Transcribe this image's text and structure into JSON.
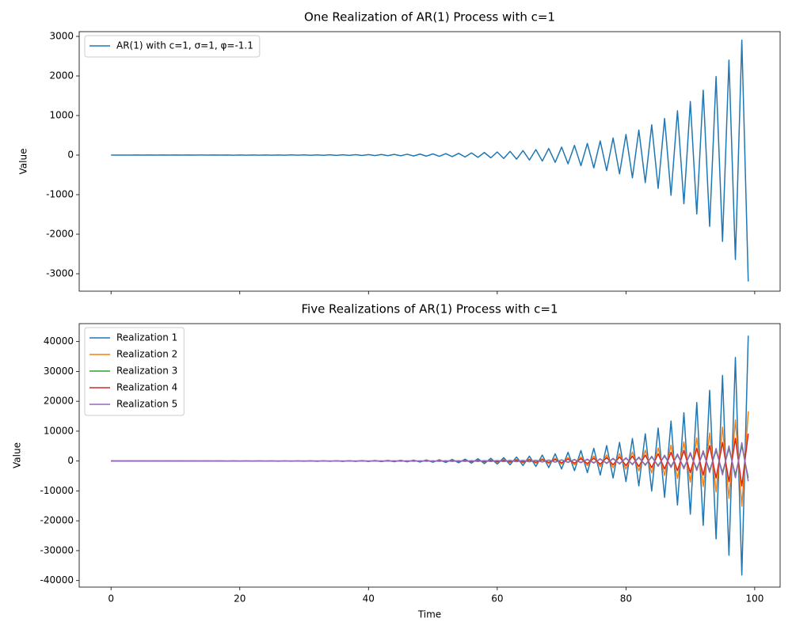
{
  "chart_data": [
    {
      "type": "line",
      "title": "One Realization of AR(1) Process with c=1",
      "ylabel": "Value",
      "x": [
        0,
        1,
        2,
        3,
        4,
        5,
        6,
        7,
        8,
        9,
        10,
        11,
        12,
        13,
        14,
        15,
        16,
        17,
        18,
        19,
        20,
        21,
        22,
        23,
        24,
        25,
        26,
        27,
        28,
        29,
        30,
        31,
        32,
        33,
        34,
        35,
        36,
        37,
        38,
        39,
        40,
        41,
        42,
        43,
        44,
        45,
        46,
        47,
        48,
        49,
        50,
        51,
        52,
        53,
        54,
        55,
        56,
        57,
        58,
        59,
        60,
        61,
        62,
        63,
        64,
        65,
        66,
        67,
        68,
        69,
        70,
        71,
        72,
        73,
        74,
        75,
        76,
        77,
        78,
        79,
        80,
        81,
        82,
        83,
        84,
        85,
        86,
        87,
        88,
        89,
        90,
        91,
        92,
        93,
        94,
        95,
        96,
        97,
        98,
        99
      ],
      "series": [
        {
          "name": "AR(1) with c=1, σ=1, φ=-1.1",
          "color": "#1f77b4",
          "values": [
            0.5,
            0.2,
            1.1,
            -0.6,
            1.9,
            -0.8,
            2.4,
            -1.3,
            2.1,
            -0.5,
            1.7,
            -0.9,
            2.3,
            -0.4,
            1.5,
            -1.1,
            2.6,
            -0.7,
            2.2,
            -1.4,
            2.5,
            -1.6,
            2.8,
            -1.9,
            3.0,
            -2.3,
            3.5,
            -2.9,
            4.2,
            -3.6,
            4.9,
            -4.4,
            5.9,
            -5.4,
            7,
            -6.7,
            8.4,
            -8.2,
            10,
            -10,
            12,
            -12,
            14,
            -15,
            17,
            -18,
            21,
            -22,
            25,
            -27,
            30,
            -32,
            37,
            -39,
            44,
            -48,
            54,
            -58,
            65,
            -70,
            78,
            -85,
            94,
            -103,
            114,
            -125,
            138,
            -151,
            167,
            -183,
            202,
            -221,
            244,
            -268,
            295,
            -324,
            357,
            -392,
            432,
            -474,
            523,
            -574,
            633,
            -695,
            765,
            -841,
            926,
            -1017,
            1120,
            -1231,
            1355,
            -1490,
            1640,
            -1803,
            1984,
            -2182,
            2401,
            -2640,
            2904,
            -3194
          ]
        }
      ],
      "xlim": [
        -4.95,
        103.95
      ],
      "xticks": [
        0,
        20,
        40,
        60,
        80,
        100
      ],
      "ylim": [
        -3440,
        3120
      ],
      "yticks": [
        -3000,
        -2000,
        -1000,
        0,
        1000,
        2000,
        3000
      ],
      "legend": "upper left"
    },
    {
      "type": "line",
      "title": "Five Realizations of AR(1) Process with c=1",
      "xlabel": "Time",
      "ylabel": "Value",
      "x": [
        0,
        1,
        2,
        3,
        4,
        5,
        6,
        7,
        8,
        9,
        10,
        11,
        12,
        13,
        14,
        15,
        16,
        17,
        18,
        19,
        20,
        21,
        22,
        23,
        24,
        25,
        26,
        27,
        28,
        29,
        30,
        31,
        32,
        33,
        34,
        35,
        36,
        37,
        38,
        39,
        40,
        41,
        42,
        43,
        44,
        45,
        46,
        47,
        48,
        49,
        50,
        51,
        52,
        53,
        54,
        55,
        56,
        57,
        58,
        59,
        60,
        61,
        62,
        63,
        64,
        65,
        66,
        67,
        68,
        69,
        70,
        71,
        72,
        73,
        74,
        75,
        76,
        77,
        78,
        79,
        80,
        81,
        82,
        83,
        84,
        85,
        86,
        87,
        88,
        89,
        90,
        91,
        92,
        93,
        94,
        95,
        96,
        97,
        98,
        99
      ],
      "series": [
        {
          "name": "Realization 1",
          "color": "#1f77b4",
          "values": [
            -3,
            4,
            -4,
            4,
            -5,
            5,
            -6,
            7,
            -7,
            8,
            -9,
            10,
            -11,
            12,
            -13,
            14,
            -15,
            17,
            -19,
            20,
            -23,
            25,
            -27,
            30,
            -33,
            36,
            -40,
            44,
            -48,
            53,
            -58,
            64,
            -71,
            78,
            -86,
            94,
            -104,
            114,
            -125,
            138,
            -152,
            167,
            -183,
            202,
            -222,
            244,
            -269,
            295,
            -325,
            358,
            -393,
            433,
            -476,
            523,
            -576,
            633,
            -697,
            766,
            -843,
            927,
            -1020,
            1122,
            -1234,
            1358,
            -1493,
            1643,
            -1807,
            1988,
            -2186,
            2405,
            -2646,
            2910,
            -3201,
            3522,
            -3874,
            4261,
            -4687,
            5156,
            -5671,
            6238,
            -6862,
            7548,
            -8304,
            9133,
            -10047,
            11052,
            -12157,
            13373,
            -14710,
            16181,
            -17799,
            19579,
            -21537,
            23690,
            -26059,
            28665,
            -31532,
            34686,
            -38153,
            41969
          ]
        },
        {
          "name": "Realization 2",
          "color": "#ff7f0e",
          "values": [
            -1,
            1,
            -2,
            2,
            -2,
            2,
            -2,
            3,
            -3,
            3,
            -3,
            4,
            -4,
            5,
            -5,
            6,
            -6,
            7,
            -7,
            8,
            -9,
            10,
            -11,
            12,
            -13,
            14,
            -16,
            17,
            -19,
            21,
            -23,
            26,
            -28,
            31,
            -34,
            37,
            -41,
            45,
            -50,
            55,
            -60,
            66,
            -73,
            80,
            -88,
            97,
            -107,
            117,
            -129,
            142,
            -156,
            172,
            -189,
            208,
            -229,
            251,
            -277,
            304,
            -335,
            368,
            -405,
            445,
            -490,
            539,
            -593,
            652,
            -717,
            789,
            -868,
            955,
            -1050,
            1155,
            -1271,
            1398,
            -1538,
            1692,
            -1861,
            2047,
            -2252,
            2477,
            -2724,
            2997,
            -3297,
            3626,
            -3989,
            4388,
            -4826,
            5309,
            -5840,
            6424,
            -7066,
            7773,
            -8550,
            9405,
            -10346,
            11381,
            -12519,
            13771,
            -15147,
            16662
          ]
        },
        {
          "name": "Realization 3",
          "color": "#2ca02c",
          "values": [
            0,
            0,
            1,
            -1,
            1,
            -1,
            1,
            -1,
            1,
            -1,
            1,
            -1,
            1,
            -2,
            2,
            -2,
            2,
            -2,
            3,
            -3,
            3,
            -3,
            4,
            -4,
            4,
            -5,
            5,
            -6,
            6,
            -7,
            8,
            -9,
            10,
            -10,
            11,
            -13,
            14,
            -15,
            17,
            -19,
            20,
            -22,
            25,
            -27,
            30,
            -33,
            36,
            -40,
            44,
            -48,
            53,
            -58,
            64,
            -70,
            77,
            -85,
            94,
            -103,
            113,
            -125,
            137,
            -151,
            166,
            -182,
            201,
            -221,
            243,
            -267,
            294,
            -323,
            355,
            -391,
            430,
            -473,
            520,
            -572,
            630,
            -693,
            762,
            -838,
            922,
            -1014,
            1115,
            -1227,
            1350,
            -1485,
            1633,
            -1796,
            1976,
            -2174,
            2391,
            -2630,
            2893,
            -3182,
            3500,
            -3851,
            4236,
            -4659,
            5125,
            -5638
          ]
        },
        {
          "name": "Realization 4",
          "color": "#d62728",
          "values": [
            -1,
            1,
            -1,
            1,
            -1,
            1,
            -1,
            1,
            -2,
            2,
            -2,
            2,
            -2,
            3,
            -3,
            3,
            -3,
            4,
            -4,
            4,
            -5,
            5,
            -6,
            7,
            -7,
            8,
            -9,
            10,
            -11,
            12,
            -13,
            14,
            -15,
            17,
            -19,
            21,
            -23,
            25,
            -27,
            30,
            -33,
            36,
            -40,
            44,
            -48,
            53,
            -59,
            64,
            -71,
            78,
            -86,
            94,
            -104,
            114,
            -125,
            138,
            -152,
            167,
            -184,
            202,
            -222,
            245,
            -269,
            296,
            -325,
            358,
            -394,
            433,
            -476,
            524,
            -577,
            634,
            -698,
            767,
            -844,
            928,
            -1021,
            1123,
            -1236,
            1359,
            -1495,
            1645,
            -1809,
            1990,
            -2189,
            2408,
            -2649,
            2914,
            -3205,
            3526,
            -3879,
            4266,
            -4693,
            5162,
            -5679,
            6246,
            -6871,
            7558,
            -8314,
            9145
          ]
        },
        {
          "name": "Realization 5",
          "color": "#9467bd",
          "values": [
            1,
            -1,
            1,
            -1,
            1,
            -1,
            1,
            -1,
            1,
            -1,
            1,
            -2,
            2,
            -2,
            2,
            -2,
            2,
            -3,
            3,
            -3,
            4,
            -4,
            4,
            -5,
            5,
            -6,
            6,
            -7,
            8,
            -9,
            9,
            -10,
            11,
            -13,
            14,
            -15,
            17,
            -18,
            20,
            -22,
            24,
            -27,
            30,
            -33,
            36,
            -39,
            43,
            -48,
            52,
            -58,
            63,
            -70,
            77,
            -84,
            93,
            -102,
            112,
            -124,
            136,
            -149,
            164,
            -181,
            199,
            -219,
            241,
            -265,
            291,
            -320,
            352,
            -388,
            426,
            -469,
            516,
            -568,
            624,
            -687,
            756,
            -831,
            914,
            -1006,
            1106,
            -1217,
            1338,
            -1472,
            1620,
            -1781,
            1960,
            -2156,
            2371,
            -2608,
            2869,
            -3156,
            3472,
            -3819,
            4201,
            -4621,
            5083,
            -5591,
            6150,
            -6765
          ]
        }
      ],
      "xlim": [
        -4.95,
        103.95
      ],
      "xticks": [
        0,
        20,
        40,
        60,
        80,
        100
      ],
      "ylim": [
        -42200,
        46000
      ],
      "yticks": [
        -40000,
        -30000,
        -20000,
        -10000,
        0,
        10000,
        20000,
        30000,
        40000
      ],
      "legend": "upper left"
    }
  ]
}
